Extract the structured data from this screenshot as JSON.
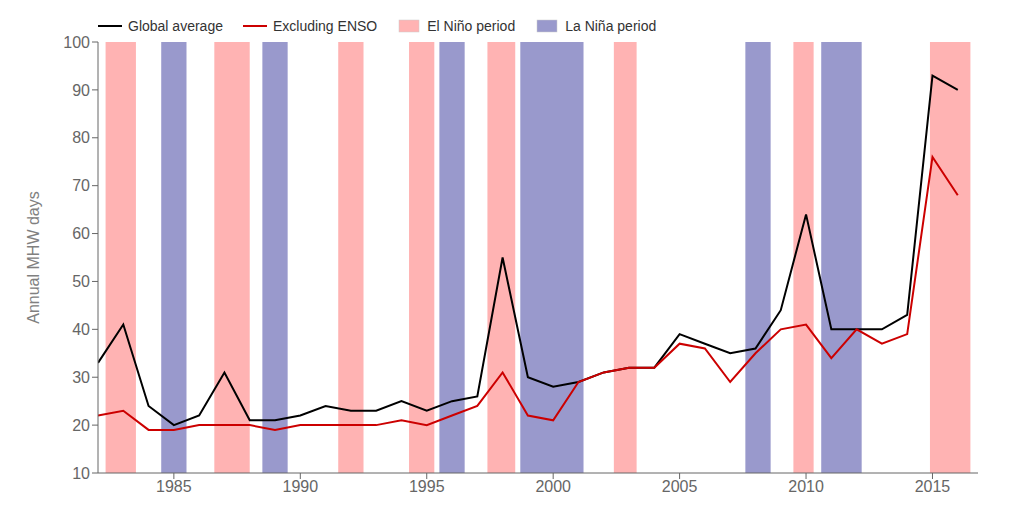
{
  "chart_data": {
    "type": "line",
    "ylabel": "Annual MHW days",
    "x": [
      1982,
      1983,
      1984,
      1985,
      1986,
      1987,
      1988,
      1989,
      1990,
      1991,
      1992,
      1993,
      1994,
      1995,
      1996,
      1997,
      1998,
      1999,
      2000,
      2001,
      2002,
      2003,
      2004,
      2005,
      2006,
      2007,
      2008,
      2009,
      2010,
      2011,
      2012,
      2013,
      2014,
      2015,
      2016
    ],
    "series": [
      {
        "name": "Global average",
        "color": "#000000",
        "values": [
          33,
          41,
          24,
          20,
          22,
          31,
          21,
          21,
          22,
          24,
          23,
          23,
          25,
          23,
          25,
          26,
          55,
          30,
          28,
          29,
          31,
          32,
          32,
          39,
          37,
          35,
          36,
          44,
          64,
          40,
          40,
          40,
          43,
          93,
          90
        ]
      },
      {
        "name": "Excluding ENSO",
        "color": "#CC0000",
        "values": [
          22,
          23,
          19,
          19,
          20,
          20,
          20,
          19,
          20,
          20,
          20,
          20,
          21,
          20,
          22,
          24,
          31,
          22,
          21,
          29,
          31,
          32,
          32,
          37,
          36,
          29,
          35,
          40,
          41,
          34,
          40,
          37,
          39,
          76,
          68
        ]
      }
    ],
    "periods": [
      {
        "name": "El Niño period",
        "color": "#FFB3B3",
        "ranges": [
          [
            1982.3,
            1983.5
          ],
          [
            1986.6,
            1988.0
          ],
          [
            1991.5,
            1992.5
          ],
          [
            1994.3,
            1995.3
          ],
          [
            1997.4,
            1998.5
          ],
          [
            2002.4,
            2003.3
          ],
          [
            2009.5,
            2010.3
          ],
          [
            2014.9,
            2016.5
          ]
        ]
      },
      {
        "name": "La Niña period",
        "color": "#9999CC",
        "ranges": [
          [
            1984.5,
            1985.5
          ],
          [
            1988.5,
            1989.5
          ],
          [
            1995.5,
            1996.5
          ],
          [
            1998.7,
            2001.2
          ],
          [
            2007.6,
            2008.6
          ],
          [
            2010.6,
            2012.2
          ]
        ]
      }
    ],
    "xlim": [
      1982.0,
      2016.8
    ],
    "ylim": [
      10,
      100
    ],
    "xticks": [
      1985,
      1990,
      1995,
      2000,
      2005,
      2010,
      2015
    ],
    "yticks": [
      10,
      20,
      30,
      40,
      50,
      60,
      70,
      80,
      90,
      100
    ],
    "legend": "upper left",
    "grid": false
  }
}
